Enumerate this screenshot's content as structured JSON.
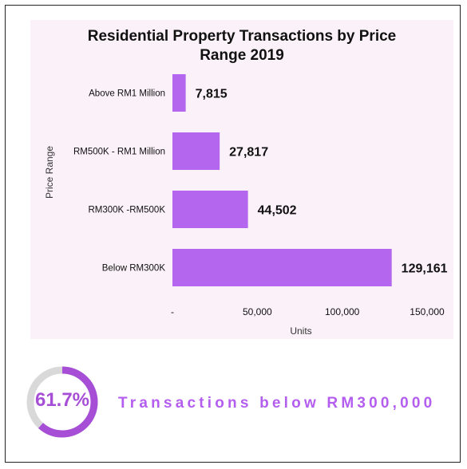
{
  "chart_data": {
    "type": "bar",
    "orientation": "horizontal",
    "title_line1": "Residential Property Transactions by Price",
    "title_line2": "Range 2019",
    "xlabel": "Units",
    "ylabel": "Price Range",
    "categories": [
      "Above RM1 Million",
      "RM500K - RM1 Million",
      "RM300K -RM500K",
      "Below RM300K"
    ],
    "values": [
      7815,
      27817,
      44502,
      129161
    ],
    "value_labels": [
      "7,815",
      "27,817",
      "44,502",
      "129,161"
    ],
    "x_ticks": [
      0,
      50000,
      100000,
      150000
    ],
    "x_tick_labels": [
      "-",
      "50,000",
      "100,000",
      "150,000"
    ],
    "xlim": [
      0,
      150000
    ],
    "grid": false,
    "legend": "none",
    "bar_color": "#b466ee"
  },
  "stat": {
    "percent": "61.7%",
    "percent_fraction": 0.617,
    "description": "Transactions below RM300,000",
    "ring_color": "#a64fd6",
    "ring_track_color": "#d9d9d9"
  }
}
